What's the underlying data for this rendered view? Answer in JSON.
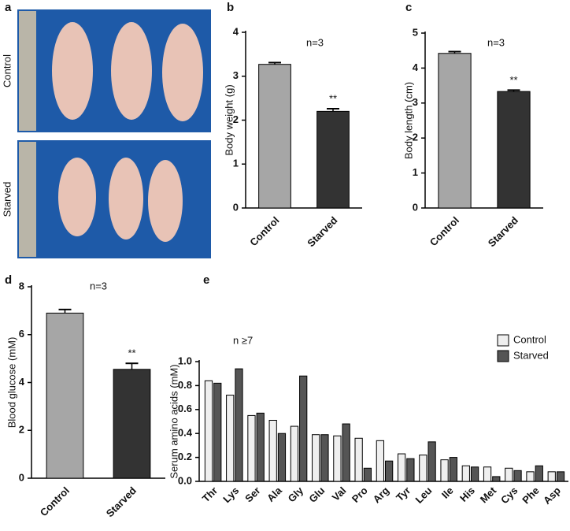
{
  "photo_panel": {
    "panel_label": "a",
    "rows": [
      "Control",
      "Starved"
    ]
  },
  "chart_data": [
    {
      "type": "bar",
      "panel_label": "b",
      "y_label": "Body weight (g)",
      "n_label": "n=3",
      "significance_label": "**",
      "categories": [
        "Control",
        "Starved"
      ],
      "values": [
        3.27,
        2.2
      ],
      "errors": [
        0.04,
        0.06
      ],
      "colors": [
        "#a6a6a6",
        "#333333"
      ],
      "ylim": [
        0,
        4
      ],
      "yticks": [
        0,
        1,
        2,
        3,
        4
      ]
    },
    {
      "type": "bar",
      "panel_label": "c",
      "y_label": "Body length (cm)",
      "n_label": "n=3",
      "significance_label": "**",
      "categories": [
        "Control",
        "Starved"
      ],
      "values": [
        4.42,
        3.33
      ],
      "errors": [
        0.05,
        0.04
      ],
      "colors": [
        "#a6a6a6",
        "#333333"
      ],
      "ylim": [
        0,
        5
      ],
      "yticks": [
        0,
        1,
        2,
        3,
        4,
        5
      ]
    },
    {
      "type": "bar",
      "panel_label": "d",
      "y_label": "Blood glucose (mM)",
      "n_label": "n=3",
      "significance_label": "**",
      "categories": [
        "Control",
        "Starved"
      ],
      "values": [
        6.9,
        4.55
      ],
      "errors": [
        0.15,
        0.25
      ],
      "colors": [
        "#a6a6a6",
        "#333333"
      ],
      "ylim": [
        0,
        8
      ],
      "yticks": [
        0,
        2,
        4,
        6,
        8
      ]
    },
    {
      "type": "bar",
      "panel_label": "e",
      "y_label": "Serum amino acids  (mM)",
      "n_label": "n ≥7",
      "categories": [
        "Thr",
        "Lys",
        "Ser",
        "Ala",
        "Gly",
        "Glu",
        "Val",
        "Pro",
        "Arg",
        "Tyr",
        "Leu",
        "Ile",
        "His",
        "Met",
        "Cys",
        "Phe",
        "Asp"
      ],
      "series": [
        {
          "name": "Control",
          "color": "#efefef",
          "values": [
            0.84,
            0.72,
            0.55,
            0.51,
            0.46,
            0.39,
            0.38,
            0.36,
            0.34,
            0.23,
            0.22,
            0.18,
            0.13,
            0.12,
            0.11,
            0.08,
            0.08
          ]
        },
        {
          "name": "Starved",
          "color": "#555555",
          "values": [
            0.82,
            0.94,
            0.57,
            0.4,
            0.88,
            0.39,
            0.48,
            0.11,
            0.17,
            0.19,
            0.33,
            0.2,
            0.12,
            0.04,
            0.09,
            0.13,
            0.08
          ]
        }
      ],
      "ylim": [
        0,
        1
      ],
      "yticks": [
        {
          "value": 0,
          "label": "0.0"
        },
        0.2,
        0.4,
        0.6,
        0.8,
        {
          "value": 1,
          "label": "1.0"
        }
      ],
      "legend": "top-right"
    }
  ]
}
